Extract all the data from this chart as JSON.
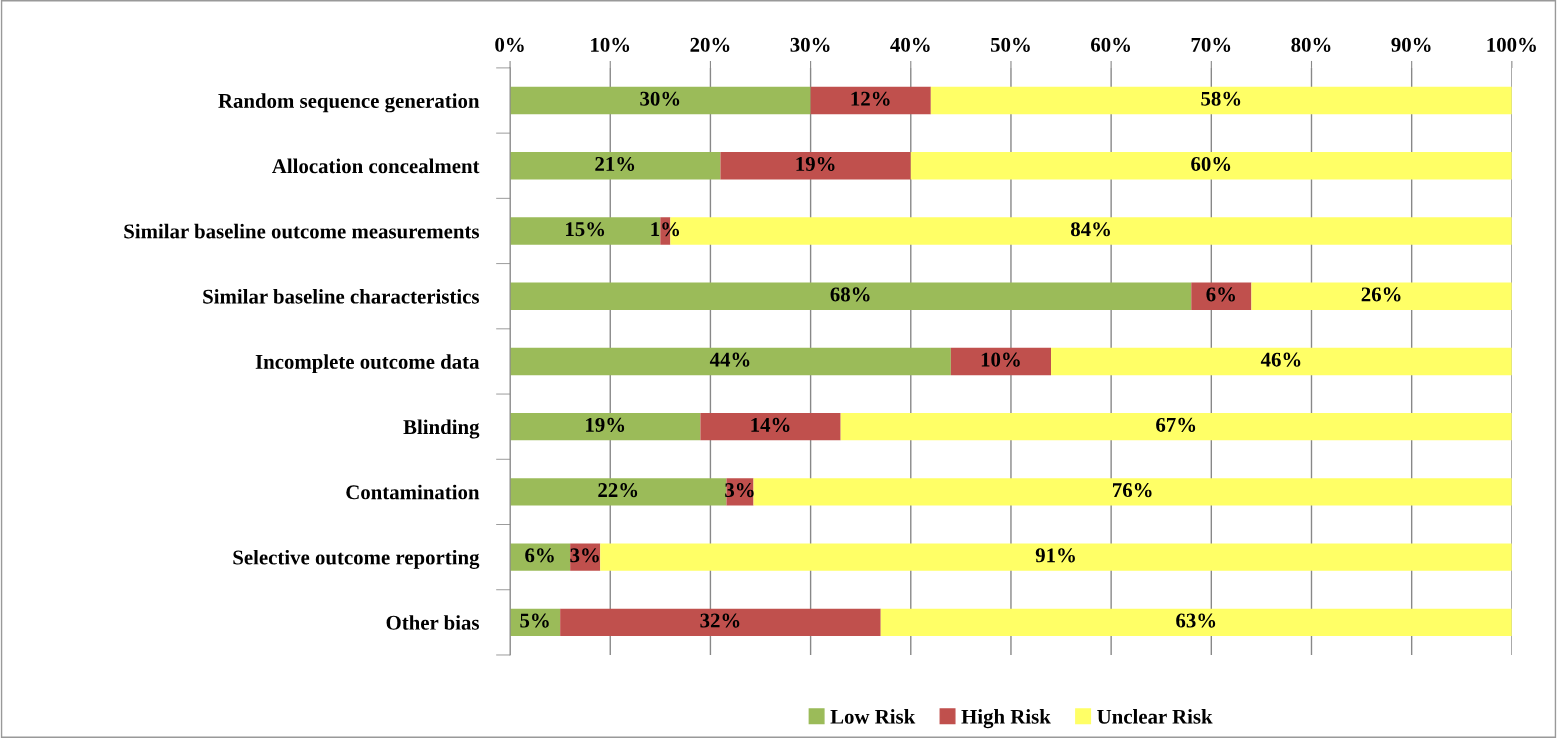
{
  "chart_data": {
    "type": "bar",
    "orientation": "horizontal",
    "stacked": true,
    "categories": [
      "Random sequence generation",
      "Allocation concealment",
      "Similar baseline outcome measurements",
      "Similar baseline characteristics",
      "Incomplete outcome data",
      "Blinding",
      "Contamination",
      "Selective outcome reporting",
      "Other bias"
    ],
    "series": [
      {
        "name": "Low Risk",
        "color": "#9bbb59",
        "values": [
          30,
          21,
          15,
          68,
          44,
          19,
          21.6,
          6,
          5
        ],
        "value_labels": [
          "30%",
          "21%",
          "15%",
          "68%",
          "44%",
          "19%",
          "22%",
          "6%",
          "5%"
        ]
      },
      {
        "name": "High Risk",
        "color": "#c0504d",
        "values": [
          12,
          19,
          1,
          6,
          10,
          14,
          2.7,
          3,
          32
        ],
        "value_labels": [
          "12%",
          "19%",
          "1%",
          "6%",
          "10%",
          "14%",
          "3%",
          "3%",
          "32%"
        ]
      },
      {
        "name": "Unclear Risk",
        "color": "#ffff66",
        "values": [
          58,
          60,
          84,
          26,
          46,
          67,
          75.7,
          91,
          63
        ],
        "value_labels": [
          "58%",
          "60%",
          "84%",
          "26%",
          "46%",
          "67%",
          "76%",
          "91%",
          "63%"
        ]
      }
    ],
    "xlim": [
      0,
      100
    ],
    "xticks": [
      {
        "value": 0,
        "label": "0%"
      },
      {
        "value": 10,
        "label": "10%"
      },
      {
        "value": 20,
        "label": "20%"
      },
      {
        "value": 30,
        "label": "30%"
      },
      {
        "value": 40,
        "label": "40%"
      },
      {
        "value": 50,
        "label": "50%"
      },
      {
        "value": 60,
        "label": "60%"
      },
      {
        "value": 70,
        "label": "70%"
      },
      {
        "value": 80,
        "label": "80%"
      },
      {
        "value": 90,
        "label": "90%"
      },
      {
        "value": 100,
        "label": "100%"
      }
    ],
    "grid": "x",
    "legend": "bottom"
  }
}
